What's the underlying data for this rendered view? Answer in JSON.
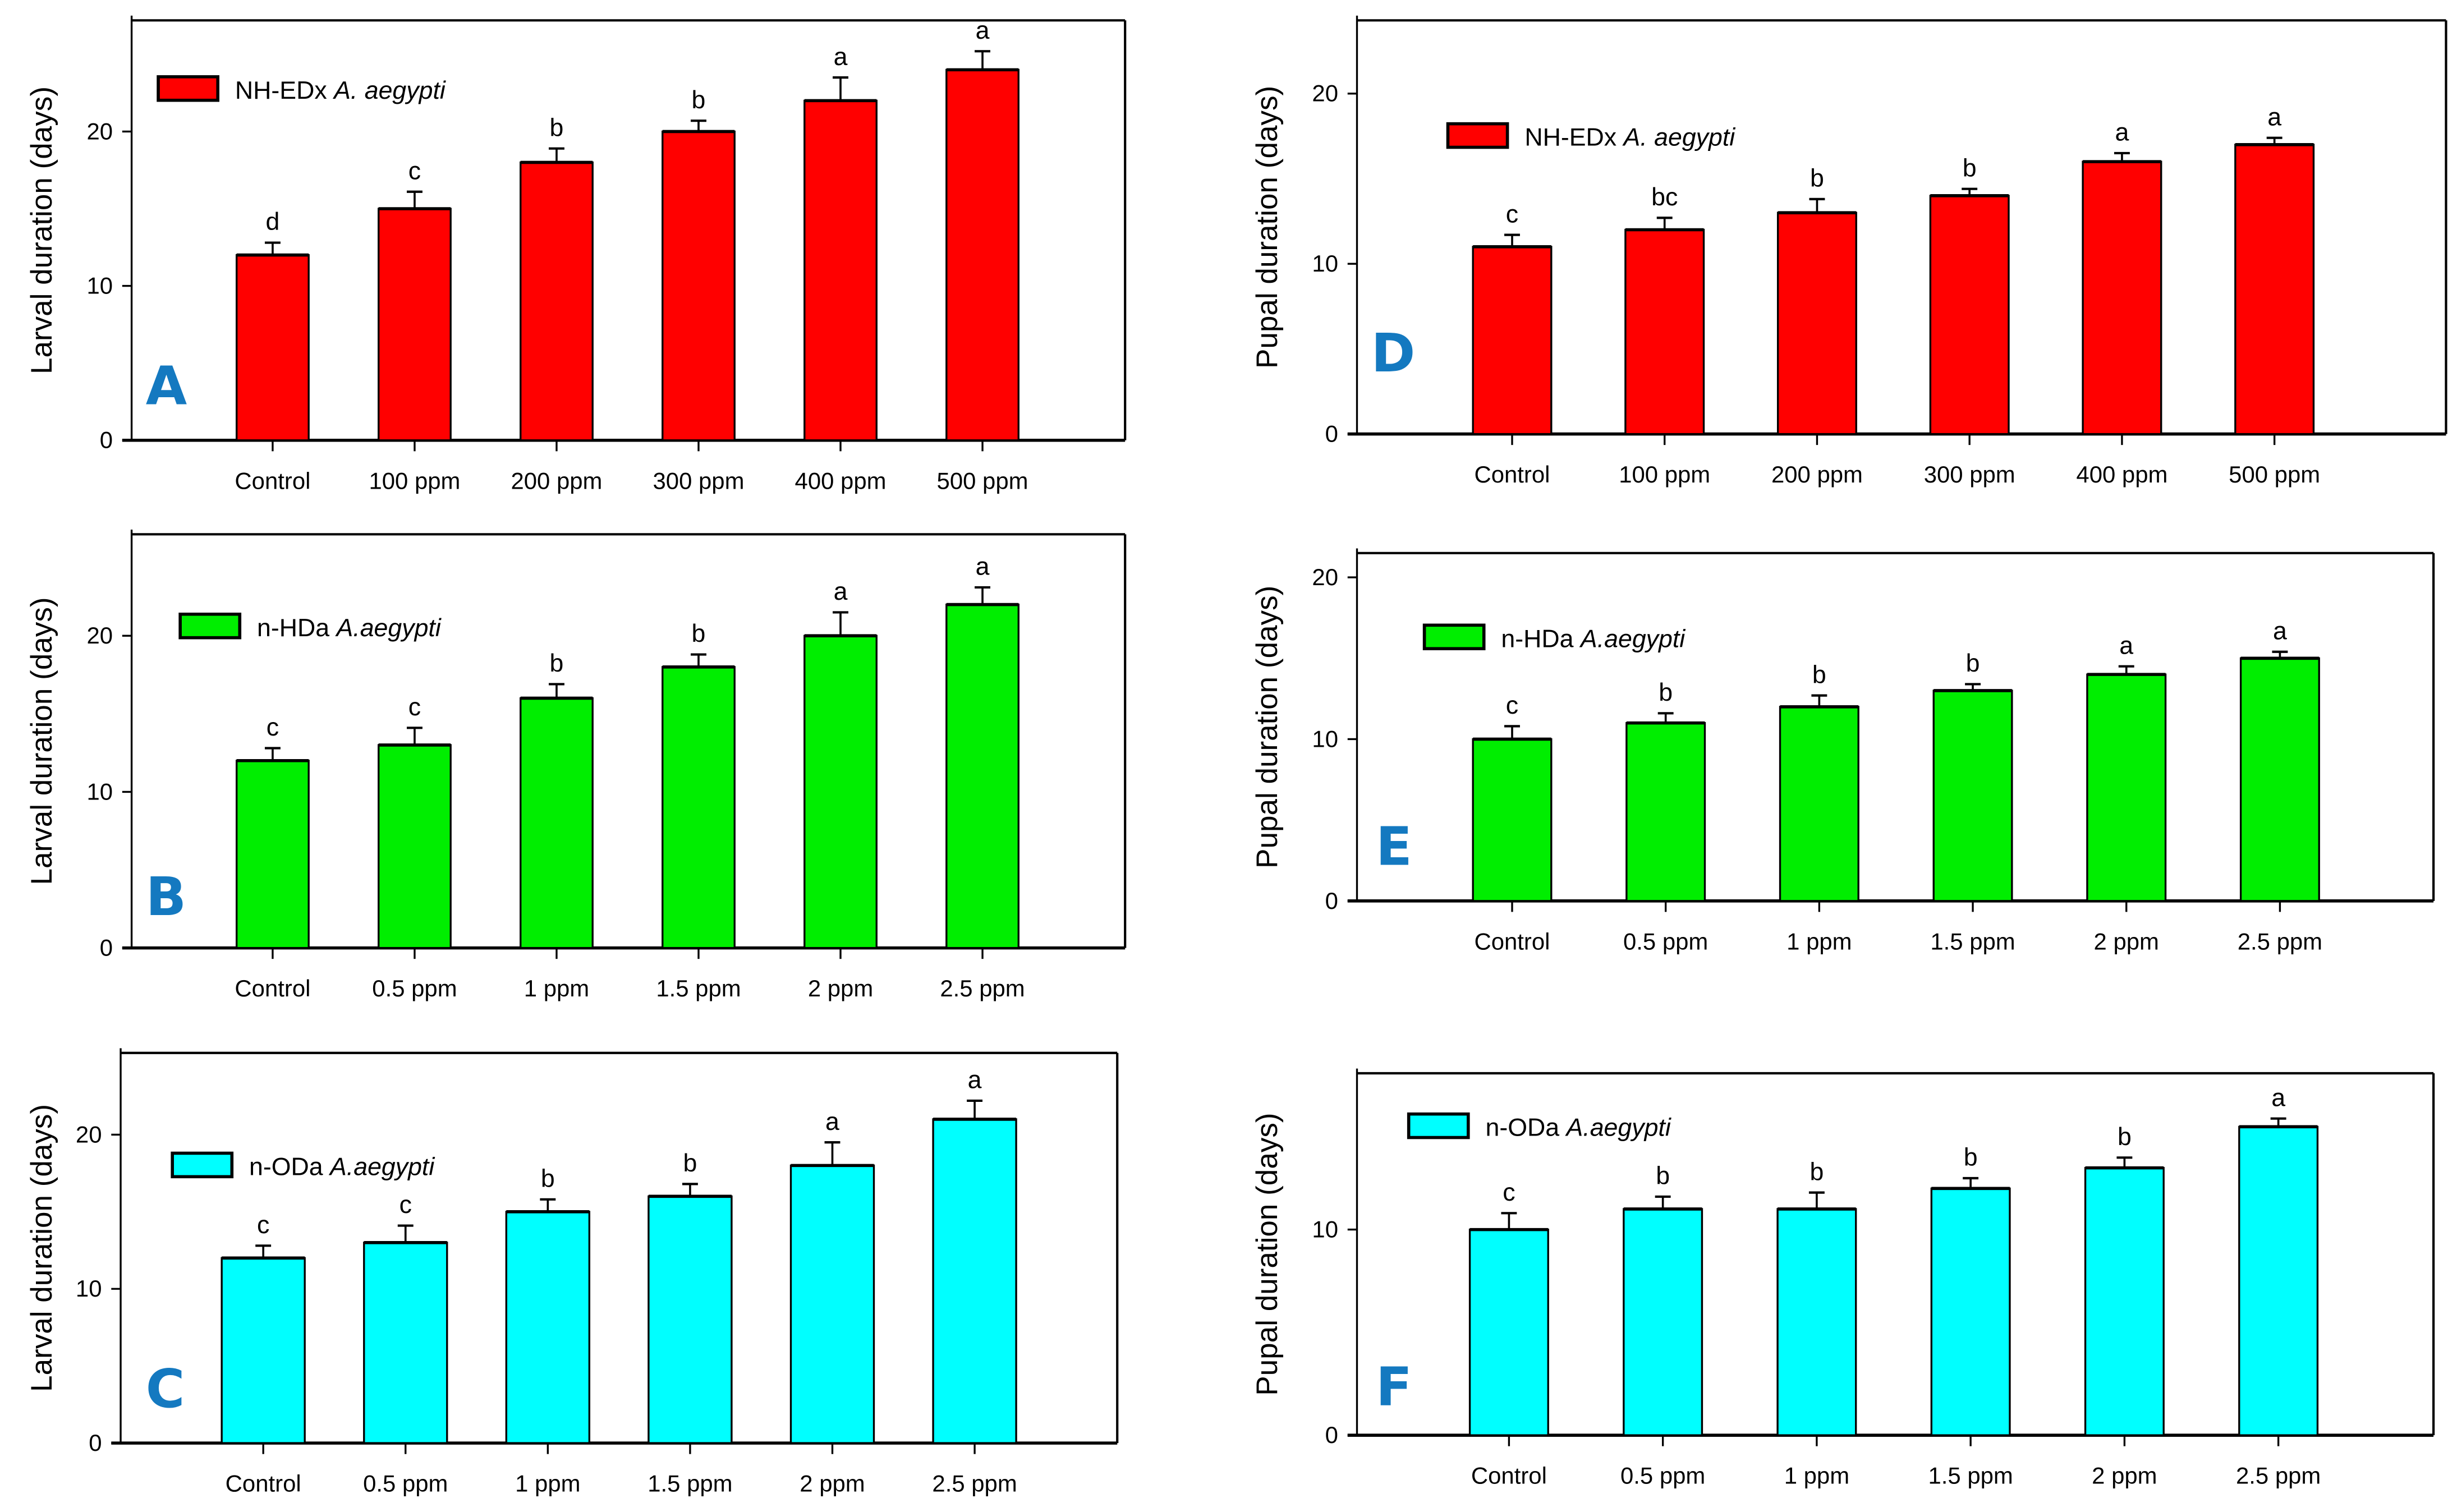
{
  "chart_data": [
    {
      "panel": "A",
      "type": "bar",
      "ylabel": "Larval duration (days)",
      "legend": {
        "prefix": "NH-EDx ",
        "species": "A. aegypti"
      },
      "color": "#ff0000",
      "categories": [
        "Control",
        "100 ppm",
        "200 ppm",
        "300 ppm",
        "400 ppm",
        "500 ppm"
      ],
      "values": [
        12,
        15,
        18,
        20,
        22,
        24
      ],
      "errors": [
        0.8,
        1.1,
        0.9,
        0.7,
        1.5,
        1.2
      ],
      "letters": [
        "d",
        "c",
        "b",
        "b",
        "a",
        "a"
      ],
      "yticks": [
        0,
        10,
        20
      ],
      "ylim": [
        0,
        27.2
      ]
    },
    {
      "panel": "B",
      "type": "bar",
      "ylabel": "Larval duration (days)",
      "legend": {
        "prefix": "n-HDa ",
        "species": "A.aegypti"
      },
      "color": "#00ee00",
      "categories": [
        "Control",
        "0.5 ppm",
        "1 ppm",
        "1.5 ppm",
        "2 ppm",
        "2.5 ppm"
      ],
      "values": [
        12,
        13,
        16,
        18,
        20,
        22
      ],
      "errors": [
        0.8,
        1.1,
        0.9,
        0.8,
        1.5,
        1.1
      ],
      "letters": [
        "c",
        "c",
        "b",
        "b",
        "a",
        "a"
      ],
      "yticks": [
        0,
        10,
        20
      ],
      "ylim": [
        0,
        26.5
      ]
    },
    {
      "panel": "C",
      "type": "bar",
      "ylabel": "Larval duration (days)",
      "legend": {
        "prefix": "n-ODa ",
        "species": "A.aegypti"
      },
      "color": "#00ffff",
      "categories": [
        "Control",
        "0.5 ppm",
        "1 ppm",
        "1.5 ppm",
        "2 ppm",
        "2.5 ppm"
      ],
      "values": [
        12,
        13,
        15,
        16,
        18,
        21
      ],
      "errors": [
        0.8,
        1.1,
        0.8,
        0.8,
        1.5,
        1.2
      ],
      "letters": [
        "c",
        "c",
        "b",
        "b",
        "a",
        "a"
      ],
      "yticks": [
        0,
        10,
        20
      ],
      "ylim": [
        0,
        25.3
      ]
    },
    {
      "panel": "D",
      "type": "bar",
      "ylabel": "Pupal duration (days)",
      "legend": {
        "prefix": "NH-EDx ",
        "species": "A. aegypti"
      },
      "color": "#ff0000",
      "categories": [
        "Control",
        "100 ppm",
        "200 ppm",
        "300 ppm",
        "400 ppm",
        "500 ppm"
      ],
      "values": [
        11,
        12,
        13,
        14,
        16,
        17
      ],
      "errors": [
        0.7,
        0.7,
        0.8,
        0.4,
        0.5,
        0.4
      ],
      "letters": [
        "c",
        "bc",
        "b",
        "b",
        "a",
        "a"
      ],
      "yticks": [
        0,
        10,
        20
      ],
      "ylim": [
        0,
        24.3
      ]
    },
    {
      "panel": "E",
      "type": "bar",
      "ylabel": "Pupal duration (days)",
      "legend": {
        "prefix": "n-HDa ",
        "species": "A.aegypti"
      },
      "color": "#00ee00",
      "categories": [
        "Control",
        "0.5 ppm",
        "1 ppm",
        "1.5 ppm",
        "2 ppm",
        "2.5 ppm"
      ],
      "values": [
        10,
        11,
        12,
        13,
        14,
        15
      ],
      "errors": [
        0.8,
        0.6,
        0.7,
        0.4,
        0.5,
        0.4
      ],
      "letters": [
        "c",
        "b",
        "b",
        "b",
        "a",
        "a"
      ],
      "yticks": [
        0,
        10,
        20
      ],
      "ylim": [
        0,
        21.5
      ]
    },
    {
      "panel": "F",
      "type": "bar",
      "ylabel": "Pupal duration (days)",
      "legend": {
        "prefix": "n-ODa ",
        "species": "A.aegypti"
      },
      "color": "#00ffff",
      "categories": [
        "Control",
        "0.5 ppm",
        "1 ppm",
        "1.5 ppm",
        "2 ppm",
        "2.5 ppm"
      ],
      "values": [
        10,
        11,
        11,
        12,
        13,
        15
      ],
      "errors": [
        0.8,
        0.6,
        0.8,
        0.5,
        0.5,
        0.4
      ],
      "letters": [
        "c",
        "b",
        "b",
        "b",
        "b",
        "a"
      ],
      "yticks": [
        0,
        10
      ],
      "ylim": [
        0,
        17.6
      ]
    }
  ]
}
